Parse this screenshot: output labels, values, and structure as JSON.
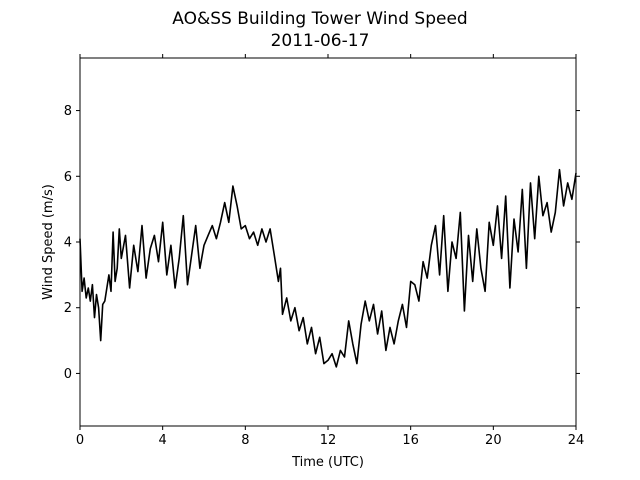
{
  "chart_data": {
    "type": "line",
    "title": "AO&SS Building Tower Wind Speed",
    "subtitle": "2011-06-17",
    "xlabel": "Time (UTC)",
    "ylabel": "Wind Speed (m/s)",
    "xlim": [
      0,
      24
    ],
    "ylim": [
      -1.6,
      9.6
    ],
    "xticks": [
      0,
      4,
      8,
      12,
      16,
      20,
      24
    ],
    "xtick_labels": [
      "0",
      "4",
      "8",
      "12",
      "16",
      "20",
      "24"
    ],
    "yticks": [
      0,
      2,
      4,
      6,
      8
    ],
    "ytick_labels": [
      "0",
      "2",
      "4",
      "6",
      "8"
    ],
    "grid": false,
    "line_color": "#000000",
    "series": [
      {
        "x": [
          0,
          0.1,
          0.2,
          0.3,
          0.4,
          0.5,
          0.6,
          0.7,
          0.8,
          0.9,
          1.0,
          1.1,
          1.2,
          1.4,
          1.5,
          1.6,
          1.7,
          1.8,
          1.9,
          2.0,
          2.2,
          2.4,
          2.6,
          2.8,
          3.0,
          3.2,
          3.4,
          3.6,
          3.8,
          4.0,
          4.2,
          4.4,
          4.6,
          4.8,
          5.0,
          5.2,
          5.4,
          5.6,
          5.8,
          6.0,
          6.2,
          6.4,
          6.6,
          6.8,
          7.0,
          7.2,
          7.4,
          7.6,
          7.8,
          8.0,
          8.2,
          8.4,
          8.6,
          8.8,
          9.0,
          9.2,
          9.4,
          9.6,
          9.7,
          9.8,
          10.0,
          10.2,
          10.4,
          10.6,
          10.8,
          11.0,
          11.2,
          11.4,
          11.6,
          11.8,
          12.0,
          12.2,
          12.4,
          12.6,
          12.8,
          13.0,
          13.2,
          13.4,
          13.6,
          13.8,
          14.0,
          14.2,
          14.4,
          14.6,
          14.8,
          15.0,
          15.2,
          15.4,
          15.6,
          15.8,
          16.0,
          16.2,
          16.4,
          16.6,
          16.8,
          17.0,
          17.2,
          17.4,
          17.6,
          17.8,
          18.0,
          18.2,
          18.4,
          18.6,
          18.8,
          19.0,
          19.2,
          19.4,
          19.6,
          19.8,
          20.0,
          20.2,
          20.4,
          20.6,
          20.8,
          21.0,
          21.2,
          21.4,
          21.6,
          21.8,
          22.0,
          22.2,
          22.4,
          22.6,
          22.8,
          23.0,
          23.2,
          23.4,
          23.6,
          23.8,
          24.0
        ],
        "values": [
          4.1,
          2.5,
          2.9,
          2.3,
          2.6,
          2.2,
          2.7,
          1.7,
          2.4,
          2.0,
          1.0,
          2.1,
          2.2,
          3.0,
          2.5,
          4.3,
          2.8,
          3.2,
          4.4,
          3.5,
          4.2,
          2.6,
          3.9,
          3.1,
          4.5,
          2.9,
          3.8,
          4.2,
          3.4,
          4.6,
          3.0,
          3.9,
          2.6,
          3.5,
          4.8,
          2.7,
          3.6,
          4.5,
          3.2,
          3.9,
          4.2,
          4.5,
          4.1,
          4.6,
          5.2,
          4.6,
          5.7,
          5.1,
          4.4,
          4.5,
          4.1,
          4.3,
          3.9,
          4.4,
          4.0,
          4.4,
          3.6,
          2.8,
          3.2,
          1.8,
          2.3,
          1.6,
          2.0,
          1.3,
          1.7,
          0.9,
          1.4,
          0.6,
          1.1,
          0.3,
          0.4,
          0.6,
          0.2,
          0.7,
          0.5,
          1.6,
          0.9,
          0.3,
          1.5,
          2.2,
          1.6,
          2.1,
          1.2,
          1.9,
          0.7,
          1.4,
          0.9,
          1.6,
          2.1,
          1.4,
          2.8,
          2.7,
          2.2,
          3.4,
          2.9,
          3.9,
          4.5,
          3.0,
          4.8,
          2.5,
          4.0,
          3.5,
          4.9,
          1.9,
          4.2,
          2.8,
          4.4,
          3.2,
          2.5,
          4.6,
          3.9,
          5.1,
          3.5,
          5.4,
          2.6,
          4.7,
          3.7,
          5.6,
          3.2,
          5.8,
          4.1,
          6.0,
          4.8,
          5.2,
          4.3,
          4.9,
          6.2,
          5.1,
          5.8,
          5.3,
          6.1
        ]
      }
    ]
  }
}
